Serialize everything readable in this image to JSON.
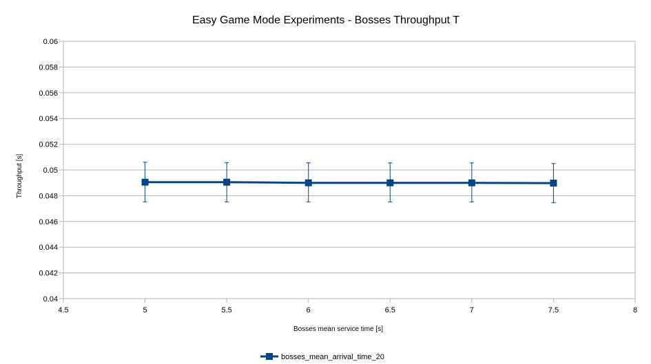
{
  "chart_data": {
    "type": "line",
    "title": "Easy Game Mode Experiments - Bosses Throughput T",
    "xlabel": "Bosses mean service time [s]",
    "ylabel": "Throughput [s]",
    "xlim": [
      4.5,
      8
    ],
    "ylim": [
      0.04,
      0.06
    ],
    "x_ticks": [
      "4.5",
      "5",
      "5.5",
      "6",
      "6.5",
      "7",
      "7.5",
      "8"
    ],
    "y_ticks": [
      "0.04",
      "0.042",
      "0.044",
      "0.046",
      "0.048",
      "0.05",
      "0.052",
      "0.054",
      "0.056",
      "0.058",
      "0.06"
    ],
    "grid": "horizontal",
    "legend_position": "bottom",
    "series": [
      {
        "name": "bosses_mean_arrival_time_20",
        "color": "#004586",
        "x": [
          5,
          5.5,
          6,
          6.5,
          7,
          7.5
        ],
        "y": [
          0.04905,
          0.04905,
          0.049,
          0.049,
          0.049,
          0.04898
        ],
        "err_low": [
          0.04753,
          0.04752,
          0.04752,
          0.04752,
          0.04752,
          0.04745
        ],
        "err_high": [
          0.0506,
          0.05057,
          0.05055,
          0.05055,
          0.05055,
          0.0505
        ]
      }
    ]
  }
}
